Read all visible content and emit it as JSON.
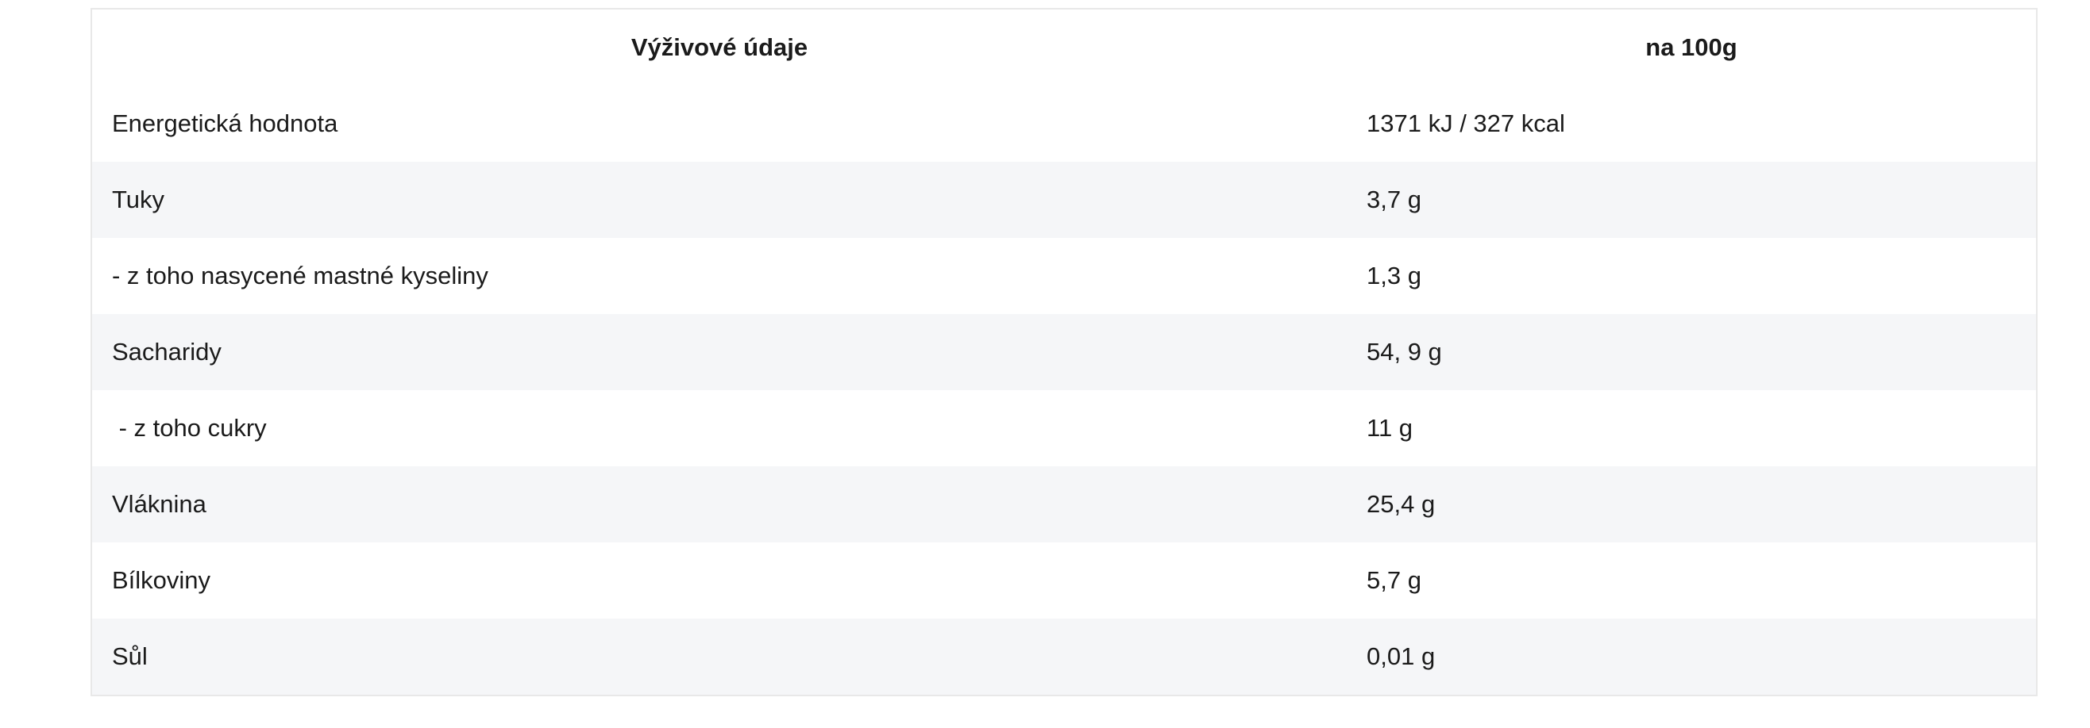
{
  "table": {
    "headers": [
      "Výživové údaje",
      "na 100g"
    ],
    "rows": [
      {
        "label": "Energetická hodnota",
        "value": "1371 kJ / 327 kcal"
      },
      {
        "label": "Tuky",
        "value": "3,7 g"
      },
      {
        "label": "- z toho nasycené mastné kyseliny",
        "value": "1,3 g"
      },
      {
        "label": "Sacharidy",
        "value": "54, 9 g"
      },
      {
        "label": " - z toho cukry",
        "value": "11 g"
      },
      {
        "label": "Vláknina",
        "value": "25,4 g"
      },
      {
        "label": "Bílkoviny",
        "value": "5,7 g"
      },
      {
        "label": "Sůl",
        "value": "0,01 g"
      }
    ]
  },
  "colors": {
    "stripe": "#f5f6f8",
    "border": "#e8e8e8",
    "text": "#1b1b1b"
  }
}
